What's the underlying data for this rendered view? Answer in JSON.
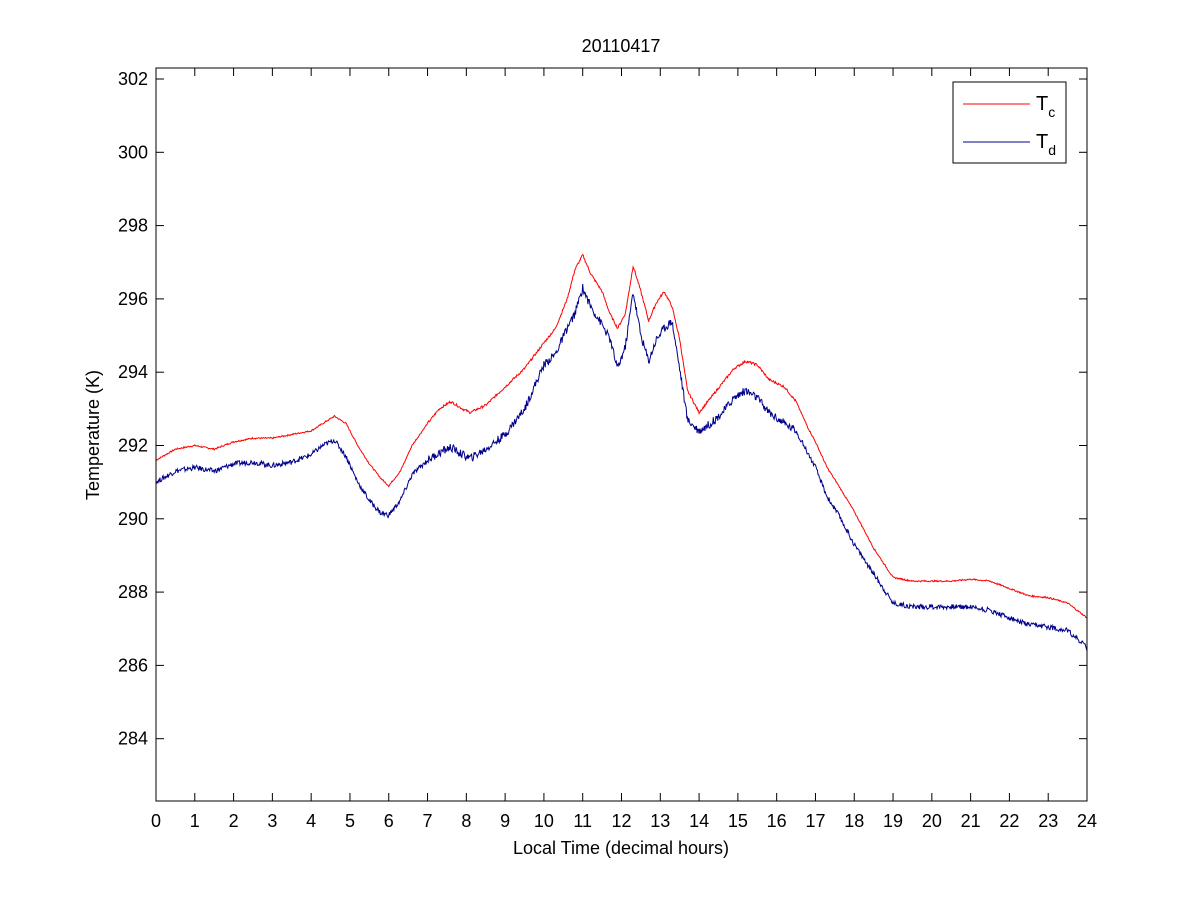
{
  "chart_data": {
    "type": "line",
    "title": "20110417",
    "xlabel": "Local Time (decimal hours)",
    "ylabel": "Temperature (K)",
    "xlim": [
      0,
      24
    ],
    "ylim": [
      282.3,
      302.3
    ],
    "xticks": [
      0,
      1,
      2,
      3,
      4,
      5,
      6,
      7,
      8,
      9,
      10,
      11,
      12,
      13,
      14,
      15,
      16,
      17,
      18,
      19,
      20,
      21,
      22,
      23,
      24
    ],
    "yticks": [
      284,
      286,
      288,
      290,
      292,
      294,
      296,
      298,
      300,
      302
    ],
    "grid": false,
    "legend_position": "top-right",
    "series": [
      {
        "name": "T",
        "subscript": "c",
        "color": "#ff0000",
        "x": [
          0,
          0.5,
          1,
          1.5,
          2,
          2.5,
          3,
          3.5,
          4,
          4.3,
          4.6,
          4.9,
          5.2,
          5.5,
          5.8,
          6,
          6.3,
          6.6,
          7,
          7.3,
          7.6,
          7.9,
          8.1,
          8.5,
          9,
          9.5,
          10,
          10.3,
          10.6,
          10.8,
          11,
          11.2,
          11.5,
          11.7,
          11.9,
          12.1,
          12.3,
          12.5,
          12.7,
          12.9,
          13.1,
          13.3,
          13.5,
          13.7,
          14,
          14.3,
          14.6,
          14.9,
          15.2,
          15.5,
          15.8,
          16.2,
          16.5,
          16.8,
          17,
          17.3,
          17.6,
          18,
          18.5,
          19,
          19.5,
          20,
          20.5,
          21,
          21.5,
          22,
          22.5,
          23,
          23.5,
          24
        ],
        "y": [
          291.6,
          291.9,
          292.0,
          291.9,
          292.1,
          292.2,
          292.2,
          292.3,
          292.4,
          292.6,
          292.8,
          292.6,
          292.0,
          291.5,
          291.1,
          290.9,
          291.3,
          292.0,
          292.6,
          293.0,
          293.2,
          293.0,
          292.9,
          293.1,
          293.6,
          294.1,
          294.8,
          295.2,
          296.0,
          296.8,
          297.2,
          296.7,
          296.2,
          295.6,
          295.2,
          295.6,
          296.9,
          296.2,
          295.4,
          295.9,
          296.2,
          295.8,
          294.9,
          293.5,
          292.9,
          293.3,
          293.7,
          294.1,
          294.3,
          294.2,
          293.8,
          293.6,
          293.2,
          292.5,
          292.1,
          291.4,
          290.9,
          290.2,
          289.2,
          288.4,
          288.3,
          288.3,
          288.3,
          288.35,
          288.3,
          288.1,
          287.9,
          287.85,
          287.7,
          287.3
        ]
      },
      {
        "name": "T",
        "subscript": "d",
        "color": "#00008b",
        "x": [
          0,
          0.5,
          1,
          1.5,
          2,
          2.5,
          3,
          3.5,
          4,
          4.3,
          4.6,
          4.9,
          5.2,
          5.5,
          5.8,
          6,
          6.3,
          6.6,
          7,
          7.3,
          7.6,
          7.9,
          8.1,
          8.5,
          9,
          9.5,
          10,
          10.3,
          10.6,
          10.8,
          11,
          11.2,
          11.5,
          11.7,
          11.9,
          12.1,
          12.3,
          12.5,
          12.7,
          12.9,
          13.1,
          13.3,
          13.5,
          13.7,
          14,
          14.3,
          14.6,
          14.9,
          15.2,
          15.5,
          15.8,
          16.2,
          16.5,
          16.8,
          17,
          17.3,
          17.6,
          18,
          18.5,
          19,
          19.5,
          20,
          20.5,
          21,
          21.5,
          22,
          22.5,
          23,
          23.5,
          24
        ],
        "y": [
          291.0,
          291.3,
          291.4,
          291.3,
          291.5,
          291.55,
          291.45,
          291.55,
          291.75,
          292.0,
          292.15,
          291.7,
          291.0,
          290.5,
          290.15,
          290.1,
          290.5,
          291.2,
          291.6,
          291.8,
          291.95,
          291.75,
          291.65,
          291.9,
          292.3,
          293.0,
          294.2,
          294.5,
          295.2,
          295.6,
          296.3,
          295.8,
          295.3,
          294.9,
          294.1,
          294.7,
          296.2,
          295.0,
          294.3,
          294.9,
          295.2,
          295.4,
          294.1,
          292.7,
          292.4,
          292.6,
          292.9,
          293.3,
          293.5,
          293.3,
          292.9,
          292.6,
          292.4,
          291.8,
          291.4,
          290.6,
          290.1,
          289.3,
          288.5,
          287.7,
          287.6,
          287.6,
          287.6,
          287.6,
          287.5,
          287.3,
          287.1,
          287.05,
          286.95,
          286.5
        ]
      }
    ]
  }
}
